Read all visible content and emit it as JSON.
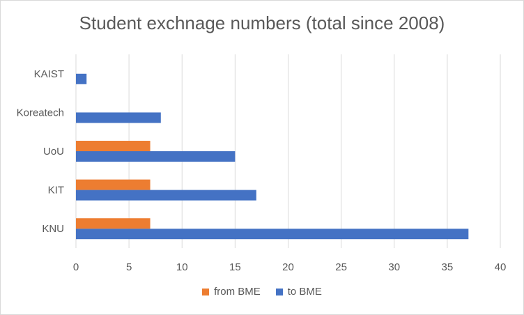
{
  "chart_data": {
    "type": "bar",
    "orientation": "horizontal",
    "title": "Student exchnage numbers (total since 2008)",
    "categories": [
      "KAIST",
      "Koreatech",
      "UoU",
      "KIT",
      "KNU"
    ],
    "series": [
      {
        "name": "from BME",
        "color": "#ED7D31",
        "values": [
          0,
          0,
          7,
          7,
          7
        ]
      },
      {
        "name": "to BME",
        "color": "#4472C4",
        "values": [
          1,
          8,
          15,
          17,
          37
        ]
      }
    ],
    "xlim": [
      0,
      40
    ],
    "xticks": [
      0,
      5,
      10,
      15,
      20,
      25,
      30,
      35,
      40
    ],
    "grid": true,
    "legend_position": "bottom"
  }
}
